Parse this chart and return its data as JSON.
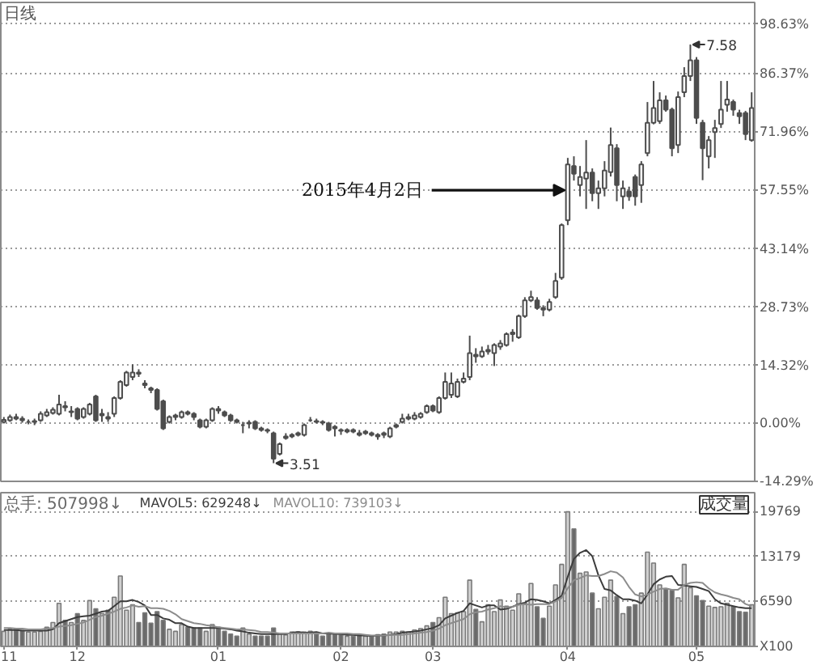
{
  "chart_data": [
    {
      "type": "candlestick",
      "title": "日线",
      "color": "#4d4d4d",
      "tick_labels": "y",
      "grid": "y",
      "categories": [
        "11",
        null,
        null,
        null,
        null,
        null,
        null,
        null,
        null,
        null,
        null,
        null,
        "12",
        null,
        null,
        null,
        null,
        null,
        null,
        null,
        null,
        null,
        null,
        null,
        null,
        null,
        null,
        null,
        null,
        null,
        null,
        null,
        null,
        null,
        null,
        "01",
        null,
        null,
        null,
        null,
        null,
        null,
        null,
        null,
        null,
        null,
        null,
        null,
        null,
        null,
        null,
        null,
        null,
        null,
        null,
        "02",
        null,
        null,
        null,
        null,
        null,
        null,
        null,
        null,
        null,
        null,
        null,
        null,
        null,
        null,
        "03",
        null,
        null,
        null,
        null,
        null,
        null,
        null,
        null,
        null,
        null,
        null,
        null,
        null,
        null,
        null,
        null,
        null,
        null,
        null,
        null,
        null,
        "04",
        null,
        null,
        null,
        null,
        null,
        null,
        null,
        null,
        null,
        null,
        null,
        null,
        null,
        null,
        null,
        null,
        null,
        null,
        null,
        null,
        "05",
        null,
        null,
        null,
        null,
        null,
        null,
        null,
        null,
        null
      ],
      "ohlc": [
        [
          0.4,
          1.6,
          0.0,
          0.9
        ],
        [
          0.8,
          2.2,
          0.4,
          1.6
        ],
        [
          1.6,
          2.4,
          0.8,
          1.2
        ],
        [
          1.2,
          1.8,
          0.2,
          0.8
        ],
        [
          0.4,
          1.0,
          -0.2,
          0.4
        ],
        [
          0.4,
          1.2,
          -0.4,
          0.6
        ],
        [
          0.8,
          3.0,
          0.4,
          2.4
        ],
        [
          2.0,
          3.6,
          1.6,
          2.8
        ],
        [
          2.6,
          4.0,
          2.2,
          3.4
        ],
        [
          2.4,
          7.1,
          2.0,
          4.7
        ],
        [
          4.3,
          5.5,
          3.0,
          4.0
        ],
        [
          2.8,
          4.3,
          1.6,
          3.0
        ],
        [
          3.6,
          4.0,
          0.8,
          1.2
        ],
        [
          1.6,
          4.0,
          1.2,
          3.6
        ],
        [
          2.4,
          5.1,
          2.0,
          4.7
        ],
        [
          6.7,
          7.1,
          0.4,
          0.8
        ],
        [
          2.0,
          3.6,
          0.4,
          2.4
        ],
        [
          1.6,
          2.8,
          0.4,
          1.2
        ],
        [
          2.4,
          6.7,
          1.6,
          6.3
        ],
        [
          6.3,
          10.7,
          5.9,
          10.3
        ],
        [
          9.5,
          13.0,
          9.1,
          12.6
        ],
        [
          11.5,
          14.6,
          10.7,
          12.6
        ],
        [
          12.6,
          13.4,
          11.5,
          12.3
        ],
        [
          9.9,
          10.7,
          8.7,
          9.5
        ],
        [
          8.7,
          9.1,
          7.5,
          8.3
        ],
        [
          8.3,
          8.7,
          3.2,
          3.6
        ],
        [
          5.5,
          5.9,
          -1.6,
          -1.2
        ],
        [
          0.4,
          2.0,
          0.0,
          1.6
        ],
        [
          1.6,
          2.4,
          0.8,
          2.0
        ],
        [
          1.6,
          3.2,
          1.2,
          2.8
        ],
        [
          2.8,
          3.2,
          2.0,
          2.4
        ],
        [
          2.4,
          2.8,
          0.8,
          1.6
        ],
        [
          0.8,
          1.2,
          -1.2,
          -0.8
        ],
        [
          -0.8,
          1.2,
          -1.2,
          0.8
        ],
        [
          0.8,
          4.0,
          0.4,
          3.6
        ],
        [
          3.6,
          4.3,
          2.4,
          3.2
        ],
        [
          2.8,
          3.2,
          1.6,
          2.0
        ],
        [
          2.0,
          2.4,
          0.4,
          0.8
        ],
        [
          0.8,
          1.2,
          0.0,
          0.4
        ],
        [
          -0.4,
          0.4,
          -2.4,
          -0.4
        ],
        [
          0.0,
          0.8,
          -1.2,
          0.2
        ],
        [
          0.4,
          0.8,
          -1.6,
          -1.2
        ],
        [
          -1.2,
          -0.8,
          -2.0,
          -1.6
        ],
        [
          -1.6,
          -1.2,
          -2.4,
          -1.8
        ],
        [
          -2.4,
          -2.0,
          -9.8,
          -8.7
        ],
        [
          -7.5,
          -4.7,
          -7.9,
          -5.1
        ],
        [
          -3.6,
          -2.4,
          -4.0,
          -3.2
        ],
        [
          -3.2,
          -2.4,
          -3.6,
          -2.8
        ],
        [
          -2.8,
          -2.0,
          -3.2,
          -2.4
        ],
        [
          -2.8,
          0.0,
          -3.2,
          -0.4
        ],
        [
          0.8,
          1.6,
          0.4,
          0.8
        ],
        [
          0.6,
          1.2,
          0.0,
          0.4
        ],
        [
          0.4,
          0.8,
          -0.4,
          0.2
        ],
        [
          0.0,
          0.4,
          -2.0,
          -1.6
        ],
        [
          -0.8,
          -0.4,
          -3.2,
          -1.2
        ],
        [
          -1.6,
          -1.2,
          -2.8,
          -1.8
        ],
        [
          -2.0,
          -1.2,
          -2.4,
          -1.6
        ],
        [
          -1.6,
          -1.2,
          -2.4,
          -2.0
        ],
        [
          -2.4,
          -1.6,
          -3.2,
          -2.8
        ],
        [
          -2.4,
          -1.6,
          -2.8,
          -2.0
        ],
        [
          -2.4,
          -2.0,
          -3.2,
          -2.8
        ],
        [
          -2.8,
          -2.4,
          -4.0,
          -3.2
        ],
        [
          -2.4,
          -2.0,
          -3.6,
          -2.8
        ],
        [
          -3.2,
          -0.8,
          -3.6,
          -1.2
        ],
        [
          -0.8,
          0.0,
          -1.2,
          -0.4
        ],
        [
          0.4,
          2.4,
          0.0,
          1.2
        ],
        [
          1.2,
          2.4,
          0.8,
          1.6
        ],
        [
          1.2,
          2.8,
          0.8,
          2.0
        ],
        [
          1.6,
          2.8,
          1.2,
          2.4
        ],
        [
          2.8,
          4.7,
          2.4,
          4.3
        ],
        [
          4.3,
          4.7,
          2.8,
          3.2
        ],
        [
          2.8,
          6.7,
          2.4,
          6.3
        ],
        [
          6.3,
          12.6,
          5.9,
          10.3
        ],
        [
          7.1,
          12.6,
          6.3,
          9.9
        ],
        [
          6.7,
          11.1,
          6.3,
          10.3
        ],
        [
          10.3,
          12.6,
          9.9,
          11.1
        ],
        [
          11.5,
          21.7,
          10.7,
          17.4
        ],
        [
          17.0,
          18.6,
          15.0,
          16.6
        ],
        [
          16.6,
          19.0,
          16.2,
          17.8
        ],
        [
          17.8,
          19.4,
          17.0,
          18.2
        ],
        [
          17.4,
          19.8,
          14.2,
          19.4
        ],
        [
          19.0,
          20.6,
          18.2,
          19.8
        ],
        [
          19.4,
          22.5,
          19.0,
          22.1
        ],
        [
          22.1,
          23.3,
          20.2,
          22.5
        ],
        [
          21.3,
          26.9,
          20.9,
          26.5
        ],
        [
          26.5,
          31.2,
          26.1,
          30.4
        ],
        [
          30.4,
          32.8,
          30.0,
          31.2
        ],
        [
          30.4,
          31.2,
          28.1,
          28.5
        ],
        [
          28.5,
          29.2,
          26.5,
          28.1
        ],
        [
          28.1,
          30.8,
          27.7,
          30.0
        ],
        [
          31.2,
          37.2,
          30.8,
          35.2
        ],
        [
          36.0,
          49.4,
          35.5,
          49.0
        ],
        [
          50.2,
          65.6,
          49.0,
          64.0
        ],
        [
          63.6,
          66.0,
          60.0,
          61.7
        ],
        [
          58.9,
          63.6,
          56.1,
          60.9
        ],
        [
          60.5,
          70.0,
          53.0,
          62.0
        ],
        [
          62.0,
          63.0,
          54.9,
          56.9
        ],
        [
          56.9,
          60.0,
          53.0,
          58.1
        ],
        [
          58.1,
          64.8,
          56.1,
          62.5
        ],
        [
          62.1,
          73.1,
          61.0,
          68.8
        ],
        [
          68.0,
          69.0,
          54.9,
          58.9
        ],
        [
          56.1,
          60.0,
          53.0,
          58.1
        ],
        [
          57.3,
          58.5,
          55.0,
          56.1
        ],
        [
          60.9,
          61.5,
          53.8,
          56.1
        ],
        [
          58.9,
          64.8,
          54.5,
          64.0
        ],
        [
          66.8,
          79.4,
          66.0,
          74.3
        ],
        [
          74.3,
          84.6,
          73.9,
          77.9
        ],
        [
          74.7,
          81.8,
          74.0,
          79.8
        ],
        [
          79.8,
          81.0,
          77.0,
          77.5
        ],
        [
          77.5,
          78.0,
          66.0,
          68.0
        ],
        [
          68.8,
          82.0,
          66.8,
          80.6
        ],
        [
          81.8,
          88.0,
          80.6,
          85.8
        ],
        [
          85.8,
          93.6,
          84.6,
          89.7
        ],
        [
          89.7,
          90.5,
          74.0,
          75.5
        ],
        [
          74.3,
          75.0,
          60.1,
          68.0
        ],
        [
          66.0,
          71.0,
          63.0,
          70.0
        ],
        [
          72.0,
          75.0,
          65.6,
          73.0
        ],
        [
          74.0,
          84.6,
          73.0,
          77.5
        ],
        [
          78.7,
          84.6,
          77.0,
          80.0
        ],
        [
          79.4,
          80.0,
          76.0,
          77.5
        ],
        [
          76.7,
          77.5,
          74.0,
          75.9
        ],
        [
          76.7,
          77.2,
          70.0,
          71.5
        ],
        [
          70.0,
          81.8,
          69.6,
          77.9
        ]
      ],
      "ylim": [
        -14.29,
        104
      ],
      "yticks": [
        {
          "value": -14.29,
          "label": "-14.29%"
        },
        {
          "value": 0,
          "label": "0.00%"
        },
        {
          "value": 14.32,
          "label": "14.32%"
        },
        {
          "value": 28.73,
          "label": "28.73%"
        },
        {
          "value": 43.14,
          "label": "43.14%"
        },
        {
          "value": 57.55,
          "label": "57.55%"
        },
        {
          "value": 71.96,
          "label": "71.96%"
        },
        {
          "value": 86.37,
          "label": "86.37%"
        },
        {
          "value": 98.63,
          "label": "98.63%"
        }
      ],
      "annotations": [
        {
          "text": "2015年4月2日",
          "x": "04",
          "y": 57.6
        },
        "7.58",
        "3.51"
      ]
    },
    {
      "type": "bar",
      "grid": "y",
      "legend": "top left",
      "categories": [
        "11",
        null,
        null,
        null,
        null,
        null,
        null,
        null,
        null,
        null,
        null,
        null,
        "12",
        null,
        null,
        null,
        null,
        null,
        null,
        null,
        null,
        null,
        null,
        null,
        null,
        null,
        null,
        null,
        null,
        null,
        null,
        null,
        null,
        null,
        null,
        "01",
        null,
        null,
        null,
        null,
        null,
        null,
        null,
        null,
        null,
        null,
        null,
        null,
        null,
        null,
        null,
        null,
        null,
        null,
        null,
        "02",
        null,
        null,
        null,
        null,
        null,
        null,
        null,
        null,
        null,
        null,
        null,
        null,
        null,
        null,
        "03",
        null,
        null,
        null,
        null,
        null,
        null,
        null,
        null,
        null,
        null,
        null,
        null,
        null,
        null,
        null,
        null,
        null,
        null,
        null,
        null,
        null,
        "04",
        null,
        null,
        null,
        null,
        null,
        null,
        null,
        null,
        null,
        null,
        null,
        null,
        null,
        null,
        null,
        null,
        null,
        null,
        null,
        null,
        "05",
        null,
        null,
        null,
        null,
        null,
        null,
        null,
        null,
        null
      ],
      "series": [
        {
          "type": "bar",
          "name": "总手: 507998↓",
          "colors": [
            "#d0d0d0",
            "#d0d0d0",
            "#6a6a6a",
            "#6a6a6a",
            "#d0d0d0",
            "#d0d0d0",
            "#d0d0d0",
            "#d0d0d0",
            "#d0d0d0",
            "#d0d0d0",
            "#6a6a6a",
            "#d0d0d0",
            "#6a6a6a",
            "#d0d0d0",
            "#d0d0d0",
            "#6a6a6a",
            "#d0d0d0",
            "#6a6a6a",
            "#d0d0d0",
            "#d0d0d0",
            "#d0d0d0",
            "#d0d0d0",
            "#6a6a6a",
            "#6a6a6a",
            "#6a6a6a",
            "#6a6a6a",
            "#6a6a6a",
            "#d0d0d0",
            "#d0d0d0",
            "#d0d0d0",
            "#6a6a6a",
            "#6a6a6a",
            "#6a6a6a",
            "#d0d0d0",
            "#d0d0d0",
            "#6a6a6a",
            "#6a6a6a",
            "#6a6a6a",
            "#6a6a6a",
            "#d0d0d0",
            "#d0d0d0",
            "#6a6a6a",
            "#6a6a6a",
            "#6a6a6a",
            "#6a6a6a",
            "#d0d0d0",
            "#d0d0d0",
            "#d0d0d0",
            "#d0d0d0",
            "#d0d0d0",
            "#d0d0d0",
            "#6a6a6a",
            "#6a6a6a",
            "#6a6a6a",
            "#6a6a6a",
            "#6a6a6a",
            "#d0d0d0",
            "#6a6a6a",
            "#6a6a6a",
            "#d0d0d0",
            "#6a6a6a",
            "#6a6a6a",
            "#6a6a6a",
            "#d0d0d0",
            "#d0d0d0",
            "#d0d0d0",
            "#d0d0d0",
            "#d0d0d0",
            "#d0d0d0",
            "#d0d0d0",
            "#6a6a6a",
            "#d0d0d0",
            "#d0d0d0",
            "#d0d0d0",
            "#d0d0d0",
            "#d0d0d0",
            "#d0d0d0",
            "#6a6a6a",
            "#d0d0d0",
            "#d0d0d0",
            "#d0d0d0",
            "#d0d0d0",
            "#d0d0d0",
            "#d0d0d0",
            "#d0d0d0",
            "#d0d0d0",
            "#d0d0d0",
            "#6a6a6a",
            "#6a6a6a",
            "#d0d0d0",
            "#d0d0d0",
            "#d0d0d0",
            "#d0d0d0",
            "#6a6a6a",
            "#d0d0d0",
            "#d0d0d0",
            "#6a6a6a",
            "#d0d0d0",
            "#d0d0d0",
            "#d0d0d0",
            "#6a6a6a",
            "#d0d0d0",
            "#6a6a6a",
            "#6a6a6a",
            "#d0d0d0",
            "#d0d0d0",
            "#d0d0d0",
            "#d0d0d0",
            "#6a6a6a",
            "#6a6a6a",
            "#d0d0d0",
            "#d0d0d0",
            "#d0d0d0",
            "#6a6a6a",
            "#6a6a6a",
            "#d0d0d0",
            "#d0d0d0",
            "#d0d0d0",
            "#d0d0d0",
            "#6a6a6a",
            "#6a6a6a",
            "#6a6a6a",
            "#d0d0d0"
          ],
          "values": [
            2200,
            2500,
            2600,
            2300,
            2100,
            2100,
            2200,
            2800,
            3500,
            6300,
            3800,
            3500,
            4800,
            3800,
            6700,
            5500,
            4800,
            5300,
            7200,
            10300,
            5300,
            6100,
            3500,
            4900,
            3400,
            5100,
            3800,
            2500,
            2200,
            3200,
            2800,
            2700,
            2700,
            2200,
            3200,
            2800,
            2200,
            1800,
            1500,
            2700,
            1800,
            1500,
            1500,
            1500,
            2700,
            1800,
            1700,
            2100,
            2100,
            2100,
            2200,
            1800,
            1500,
            1800,
            1700,
            1800,
            1500,
            1500,
            1700,
            1500,
            1400,
            1700,
            1800,
            2100,
            2100,
            2200,
            2100,
            2400,
            2600,
            3000,
            3500,
            4200,
            7200,
            4800,
            4900,
            5100,
            9700,
            5400,
            3600,
            6100,
            5100,
            6800,
            5900,
            5300,
            7700,
            6300,
            9200,
            5800,
            4100,
            5900,
            9000,
            12000,
            19700,
            17200,
            10700,
            10900,
            7800,
            5500,
            7200,
            9700,
            7300,
            4800,
            5800,
            6100,
            7800,
            13800,
            12200,
            9000,
            8400,
            8200,
            7100,
            12000,
            8600,
            7400,
            6700,
            5900,
            5700,
            5800,
            6300,
            5800,
            5100,
            5000,
            6100
          ]
        },
        {
          "type": "line",
          "name": "MAVOL5: 629248↓",
          "color": "#3c3c3c",
          "values": [
            2400,
            2400,
            2400,
            2300,
            2300,
            2300,
            2300,
            2300,
            2500,
            3400,
            3700,
            4000,
            4300,
            4400,
            4500,
            4800,
            5100,
            5200,
            5900,
            6600,
            6600,
            6800,
            6500,
            6000,
            4600,
            4600,
            4100,
            3900,
            3400,
            3400,
            2900,
            2700,
            2700,
            2700,
            2700,
            2700,
            2600,
            2500,
            2300,
            2200,
            2000,
            1900,
            1800,
            1800,
            1800,
            1800,
            1800,
            2000,
            2100,
            2000,
            2000,
            2100,
            1900,
            1900,
            1800,
            1800,
            1700,
            1700,
            1600,
            1600,
            1500,
            1600,
            1600,
            1700,
            1800,
            2000,
            2100,
            2200,
            2300,
            2500,
            2700,
            3100,
            4100,
            4500,
            4900,
            5200,
            6300,
            6000,
            5700,
            6000,
            6000,
            5400,
            5500,
            5800,
            6200,
            6400,
            6900,
            6800,
            6600,
            6300,
            6800,
            7400,
            10200,
            12800,
            13700,
            14100,
            13200,
            10400,
            8400,
            8200,
            7500,
            6900,
            6900,
            6700,
            6300,
            7600,
            9100,
            9800,
            10200,
            10300,
            9000,
            8900,
            8800,
            8700,
            8400,
            8100,
            6900,
            6300,
            6100,
            5900,
            5700,
            5600,
            5600
          ]
        },
        {
          "type": "line",
          "name": "MAVOL10: 739103↓",
          "color": "#8c8c8c",
          "values": [
            2700,
            2700,
            2600,
            2600,
            2500,
            2500,
            2500,
            2600,
            2700,
            2900,
            3000,
            3100,
            3300,
            3500,
            3900,
            4300,
            4500,
            4800,
            5100,
            5500,
            5700,
            6000,
            5800,
            5900,
            5600,
            5600,
            5500,
            5200,
            4700,
            4000,
            3700,
            3400,
            3300,
            3100,
            3000,
            2800,
            2700,
            2600,
            2500,
            2500,
            2400,
            2300,
            2100,
            2100,
            2000,
            1900,
            1900,
            1900,
            1900,
            1900,
            1900,
            1900,
            1900,
            2000,
            1900,
            1900,
            1900,
            1800,
            1800,
            1700,
            1600,
            1600,
            1600,
            1700,
            1700,
            1700,
            1800,
            1900,
            2000,
            2100,
            2300,
            2600,
            3100,
            3400,
            3700,
            4000,
            4700,
            5000,
            5100,
            5400,
            5600,
            5900,
            5700,
            5800,
            6100,
            6200,
            6100,
            6200,
            6200,
            6200,
            6600,
            7100,
            8500,
            9700,
            10000,
            10400,
            10300,
            10300,
            10600,
            11000,
            10800,
            10100,
            8700,
            7600,
            7300,
            7600,
            8000,
            8400,
            8500,
            8300,
            8300,
            9000,
            9300,
            9400,
            9300,
            8500,
            7900,
            7600,
            7400,
            7100,
            6900,
            6200,
            5900
          ]
        }
      ],
      "ylim": [
        0,
        22500
      ],
      "yticks": [
        {
          "value": 0,
          "label": "X100"
        },
        6590,
        13179,
        19769
      ],
      "annotations": [
        "成交量"
      ]
    }
  ]
}
